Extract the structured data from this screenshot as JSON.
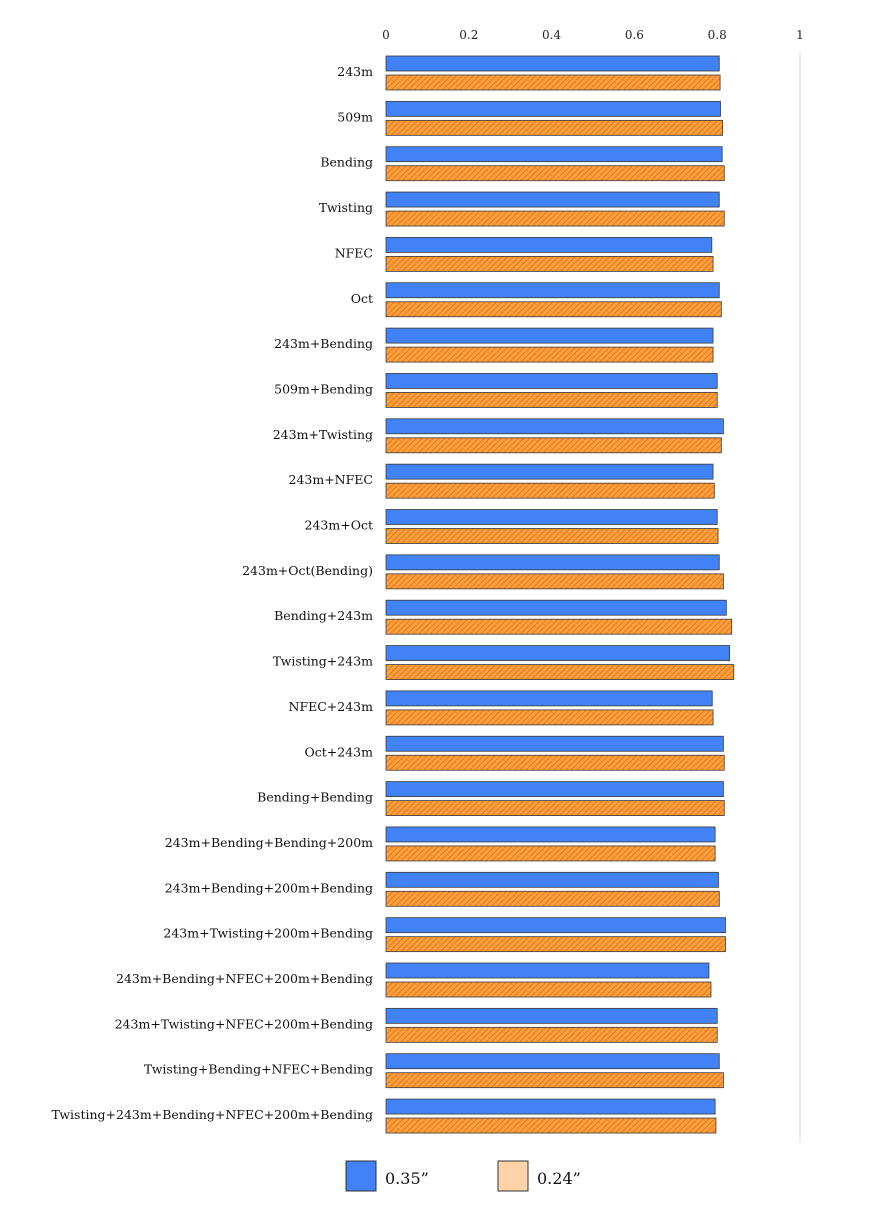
{
  "chart_data": {
    "type": "bar",
    "orientation": "horizontal",
    "title": "",
    "xlabel": "",
    "ylabel": "",
    "xlim": [
      0,
      1
    ],
    "xticks": [
      "0",
      "0.2",
      "0.4",
      "0.6",
      "0.8",
      "1"
    ],
    "x_axis_position": "top",
    "grid": false,
    "categories": [
      "243m",
      "509m",
      "Bending",
      "Twisting",
      "NFEC",
      "Oct",
      "243m+Bending",
      "509m+Bending",
      "243m+Twisting",
      "243m+NFEC",
      "243m+Oct",
      "243m+Oct(Bending)",
      "Bending+243m",
      "Twisting+243m",
      "NFEC+243m",
      "Oct+243m",
      "Bending+Bending",
      "243m+Bending+Bending+200m",
      "243m+Bending+200m+Bending",
      "243m+Twisting+200m+Bending",
      "243m+Bending+NFEC+200m+Bending",
      "243m+Twisting+NFEC+200m+Bending",
      "Twisting+Bending+NFEC+Bending",
      "Twisting+243m+Bending+NFEC+200m+Bending"
    ],
    "series": [
      {
        "name": "0.35”",
        "color": "#4282f7",
        "pattern": "solid",
        "values": [
          0.805,
          0.808,
          0.812,
          0.805,
          0.787,
          0.805,
          0.79,
          0.8,
          0.815,
          0.79,
          0.8,
          0.805,
          0.822,
          0.83,
          0.788,
          0.815,
          0.815,
          0.795,
          0.803,
          0.82,
          0.78,
          0.8,
          0.805,
          0.795
        ]
      },
      {
        "name": "0.24”",
        "color": "#ff9933",
        "pattern": "hatched",
        "values": [
          0.807,
          0.813,
          0.817,
          0.817,
          0.79,
          0.81,
          0.79,
          0.8,
          0.81,
          0.793,
          0.802,
          0.815,
          0.835,
          0.84,
          0.79,
          0.817,
          0.817,
          0.795,
          0.805,
          0.82,
          0.785,
          0.8,
          0.815,
          0.797
        ]
      }
    ],
    "legend": {
      "position": "bottom",
      "items": [
        {
          "label": "0.35”",
          "color": "#4282f7"
        },
        {
          "label": "0.24”",
          "color": "#ffd2aa"
        }
      ]
    }
  }
}
